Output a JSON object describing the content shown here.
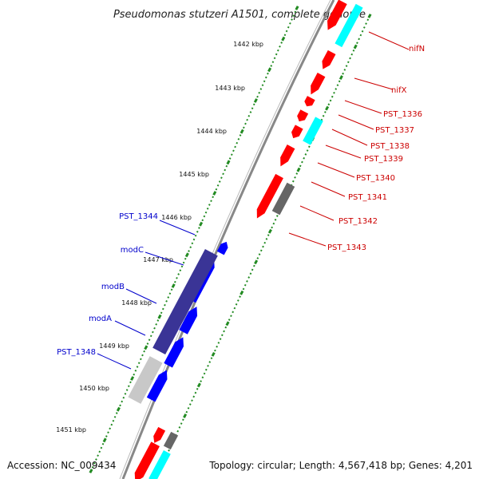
{
  "title": "Pseudomonas stutzeri A1501, complete genome",
  "footer": {
    "accession": "Accession: NC_009434",
    "summary": "Topology: circular; Length: 4,567,418 bp; Genes: 4,201"
  },
  "colors": {
    "forward_gene": "#ff0000",
    "reverse_gene": "#0000ff",
    "rna": "#00ffff",
    "other": "#666666",
    "operon_dark": "#3a3496",
    "operon_light": "#c8c8c8",
    "label_right": "#cc0000",
    "label_left": "#0000cc",
    "tick": "#228b22",
    "backbone": "#888888"
  },
  "scale_labels": [
    "1442 kbp",
    "1443 kbp",
    "1444 kbp",
    "1445 kbp",
    "1446 kbp",
    "1447 kbp",
    "1448 kbp",
    "1449 kbp",
    "1450 kbp",
    "1451 kbp"
  ],
  "right_labels": [
    "nifN",
    "nifX",
    "PST_1336",
    "PST_1337",
    "PST_1338",
    "PST_1339",
    "PST_1340",
    "PST_1341",
    "PST_1342",
    "PST_1343"
  ],
  "left_labels": [
    "PST_1344",
    "modC",
    "modB",
    "modA",
    "PST_1348"
  ]
}
